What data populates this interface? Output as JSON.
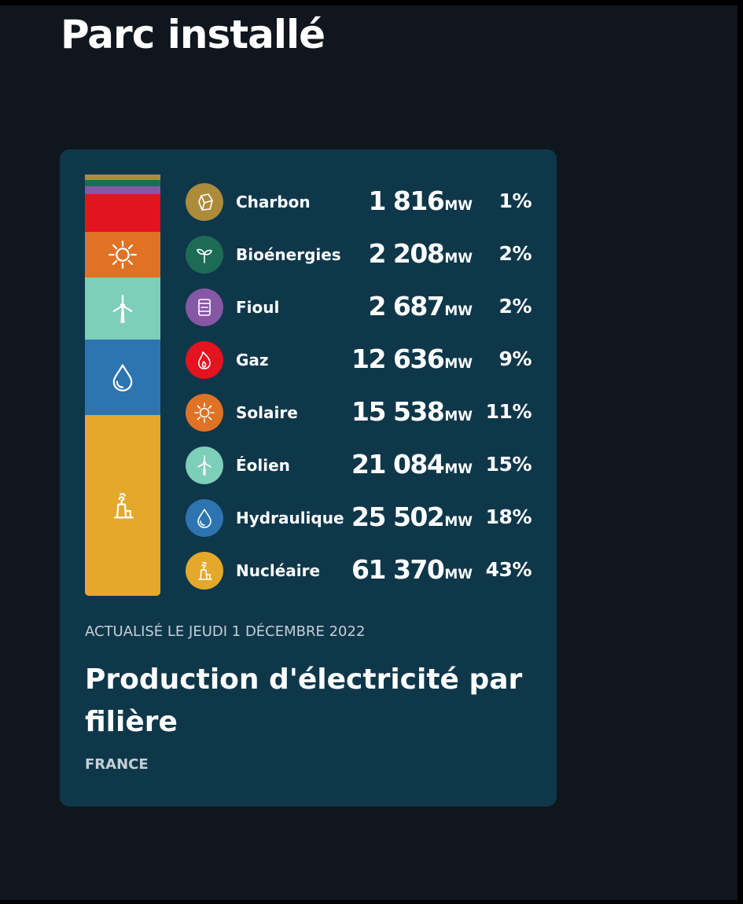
{
  "page": {
    "title": "Parc installé"
  },
  "chart_data": {
    "type": "bar",
    "title": "Production d'électricité par filière",
    "updated": "ACTUALISÉ LE JEUDI 1 DÉCEMBRE 2022",
    "region": "FRANCE",
    "unit": "MW",
    "categories": [
      "Charbon",
      "Bioénergies",
      "Fioul",
      "Gaz",
      "Solaire",
      "Éolien",
      "Hydraulique",
      "Nucléaire"
    ],
    "values": [
      1816,
      2208,
      2687,
      12636,
      15538,
      21084,
      25502,
      61370
    ],
    "values_display": [
      "1 816",
      "2 208",
      "2 687",
      "12 636",
      "15 538",
      "21 084",
      "25 502",
      "61 370"
    ],
    "percents": [
      "1%",
      "2%",
      "2%",
      "9%",
      "11%",
      "15%",
      "18%",
      "43%"
    ],
    "colors": [
      "#ad8b3b",
      "#1c6c55",
      "#8657a4",
      "#e31320",
      "#e07226",
      "#7ecfb9",
      "#2d74b1",
      "#e4a92a"
    ],
    "icons": [
      "coal-icon",
      "leaf-icon",
      "barrel-icon",
      "flame-icon",
      "sun-icon",
      "wind-turbine-icon",
      "water-drop-icon",
      "nuclear-plant-icon"
    ]
  }
}
